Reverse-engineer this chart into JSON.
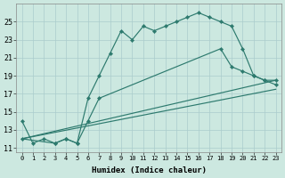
{
  "xlabel": "Humidex (Indice chaleur)",
  "background_color": "#cce8e0",
  "grid_color": "#aacccc",
  "line_color": "#2d7a6e",
  "xlim": [
    -0.5,
    23.5
  ],
  "ylim": [
    10.5,
    27
  ],
  "yticks": [
    11,
    13,
    15,
    17,
    19,
    21,
    23,
    25
  ],
  "xticks": [
    0,
    1,
    2,
    3,
    4,
    5,
    6,
    7,
    8,
    9,
    10,
    11,
    12,
    13,
    14,
    15,
    16,
    17,
    18,
    19,
    20,
    21,
    22,
    23
  ],
  "curve1_x": [
    0,
    1,
    2,
    3,
    4,
    5,
    6,
    7,
    8,
    9,
    10,
    11,
    12,
    13,
    14,
    15,
    16,
    17,
    18,
    19,
    20,
    21,
    22,
    23
  ],
  "curve1_y": [
    14.0,
    11.5,
    12.0,
    11.5,
    12.0,
    11.5,
    16.5,
    19.0,
    21.5,
    24.0,
    23.0,
    24.5,
    24.0,
    24.5,
    25.0,
    25.5,
    26.0,
    25.5,
    25.0,
    24.5,
    22.0,
    19.0,
    18.5,
    18.0
  ],
  "curve2_x": [
    0,
    3,
    4,
    5,
    6,
    7,
    18,
    19,
    20,
    21,
    22,
    23
  ],
  "curve2_y": [
    12.0,
    11.5,
    12.0,
    11.5,
    14.0,
    16.5,
    22.0,
    20.0,
    19.5,
    19.0,
    18.5,
    18.5
  ],
  "line1_x": [
    0,
    23
  ],
  "line1_y": [
    12.0,
    17.5
  ],
  "line2_x": [
    0,
    23
  ],
  "line2_y": [
    12.0,
    18.5
  ]
}
